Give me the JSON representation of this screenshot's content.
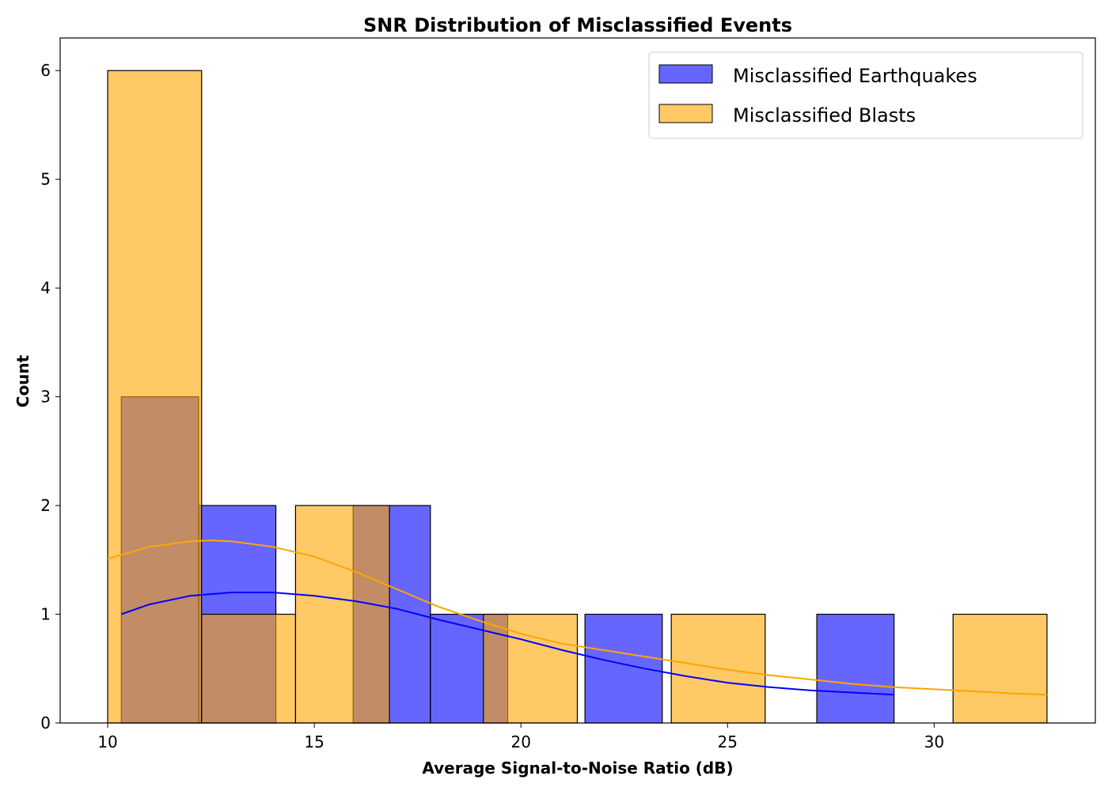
{
  "chart_data": {
    "type": "histogram",
    "title": "SNR Distribution of Misclassified Events",
    "xlabel": "Average Signal-to-Noise Ratio (dB)",
    "ylabel": "Count",
    "xlim": [
      8.85,
      33.9
    ],
    "ylim": [
      0,
      6.3
    ],
    "xticks": [
      10,
      15,
      20,
      25,
      30
    ],
    "yticks": [
      0,
      1,
      2,
      3,
      4,
      5,
      6
    ],
    "grid": false,
    "legend_position": "top-right",
    "series": [
      {
        "name": "Misclassified Earthquakes",
        "color": "#0000ff",
        "bin_start": 10.33,
        "bin_width": 1.87,
        "counts": [
          3,
          2,
          0,
          2,
          1,
          0,
          1,
          0,
          0,
          1
        ],
        "kde": {
          "x": [
            10.33,
            11,
            12,
            13,
            13.5,
            14,
            15,
            16,
            17,
            17.5,
            18,
            19,
            20,
            21,
            22,
            22.5,
            23,
            24,
            25,
            26,
            27,
            27.5,
            28,
            29.03
          ],
          "y": [
            1.0,
            1.09,
            1.17,
            1.2,
            1.2,
            1.2,
            1.17,
            1.12,
            1.05,
            1.0,
            0.95,
            0.86,
            0.77,
            0.67,
            0.58,
            0.54,
            0.5,
            0.43,
            0.37,
            0.33,
            0.3,
            0.29,
            0.28,
            0.26
          ]
        }
      },
      {
        "name": "Misclassified Blasts",
        "color": "#ffa500",
        "bin_start": 10.0,
        "bin_width": 2.273,
        "counts": [
          6,
          1,
          2,
          0,
          1,
          0,
          1,
          0,
          0,
          1
        ],
        "kde": {
          "x": [
            10.0,
            11,
            12,
            12.5,
            13,
            14,
            15,
            16,
            17,
            17.5,
            18,
            19,
            20,
            21,
            22,
            22.5,
            23,
            24,
            25,
            26,
            27,
            28,
            29,
            30,
            31,
            32,
            32.73
          ],
          "y": [
            1.51,
            1.62,
            1.67,
            1.68,
            1.67,
            1.62,
            1.53,
            1.39,
            1.23,
            1.15,
            1.07,
            0.94,
            0.82,
            0.73,
            0.67,
            0.64,
            0.61,
            0.55,
            0.49,
            0.44,
            0.4,
            0.36,
            0.33,
            0.31,
            0.29,
            0.27,
            0.26
          ]
        }
      }
    ]
  }
}
